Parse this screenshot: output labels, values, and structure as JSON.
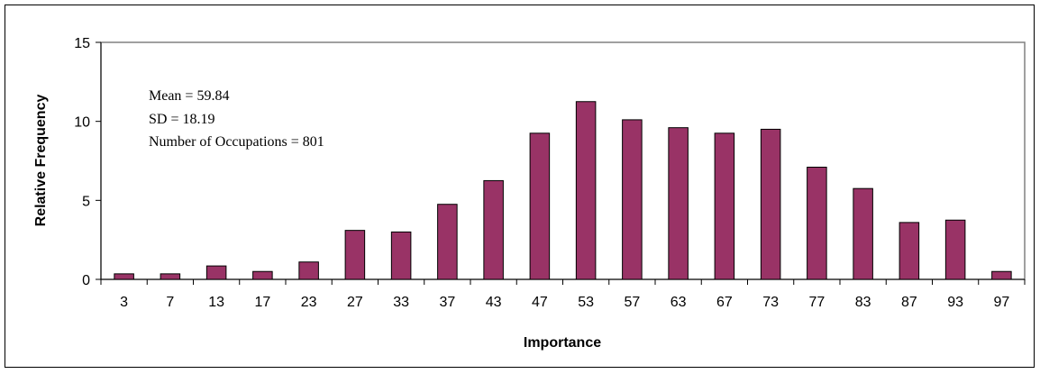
{
  "colors": {
    "bar_fill": "#993366",
    "bar_stroke": "#000000",
    "plot_border": "#808080",
    "axis": "#000000"
  },
  "chart_data": {
    "type": "bar",
    "xlabel": "Importance",
    "ylabel": "Relative Frequency",
    "ylim": [
      0,
      15
    ],
    "yticks": [
      "0",
      "5",
      "10",
      "15"
    ],
    "grid": false,
    "legend": "none",
    "categories": [
      "3",
      "7",
      "13",
      "17",
      "23",
      "27",
      "33",
      "37",
      "43",
      "47",
      "53",
      "57",
      "63",
      "67",
      "73",
      "77",
      "83",
      "87",
      "93",
      "97"
    ],
    "values": [
      0.35,
      0.35,
      0.85,
      0.5,
      1.1,
      3.1,
      3.0,
      4.75,
      6.25,
      9.25,
      11.25,
      10.1,
      9.6,
      9.25,
      9.5,
      7.1,
      5.75,
      3.6,
      3.75,
      0.5
    ],
    "annotations": [
      "Mean = 59.84",
      "SD = 18.19",
      "Number of Occupations = 801"
    ]
  }
}
